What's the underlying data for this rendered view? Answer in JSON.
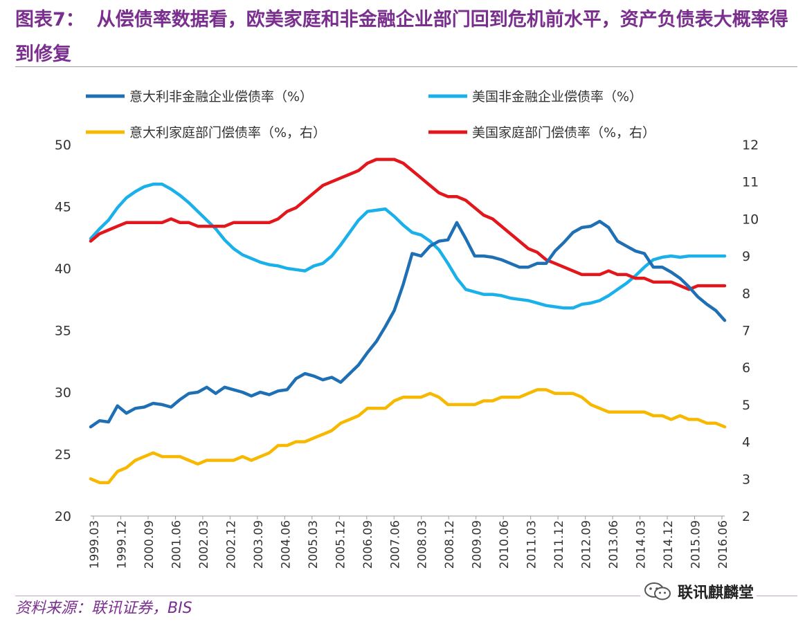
{
  "header": {
    "figure_label": "图表7：",
    "title": "从偿债率数据看，欧美家庭和非金融企业部门回到危机前水平，资产负债表大概率得到修复"
  },
  "footer": {
    "source": "资料来源：联讯证券，BIS",
    "watermark": "联讯麒麟堂",
    "watermark_icon": "wechat-icon"
  },
  "chart_data": {
    "type": "line",
    "y_left": {
      "lim": [
        20,
        50
      ],
      "ticks": [
        "20",
        "25",
        "30",
        "35",
        "40",
        "45",
        "50"
      ]
    },
    "y_right": {
      "lim": [
        2,
        12
      ],
      "ticks": [
        "2",
        "3",
        "4",
        "5",
        "6",
        "7",
        "8",
        "9",
        "10",
        "11",
        "12"
      ]
    },
    "x_start": "1999.03",
    "x_end": "2016.12",
    "x_tick_labels": [
      "1999.03",
      "1999.12",
      "2000.09",
      "2001.06",
      "2002.03",
      "2002.12",
      "2003.09",
      "2004.06",
      "2005.03",
      "2005.12",
      "2006.09",
      "2007.06",
      "2008.03",
      "2008.12",
      "2009.09",
      "2010.06",
      "2011.03",
      "2011.12",
      "2012.09",
      "2013.06",
      "2014.03",
      "2014.12",
      "2015.09",
      "2016.06"
    ],
    "grid": false,
    "legend_position": "top",
    "series": [
      {
        "name": "意大利非金融企业偿债率（%）",
        "axis": "left",
        "color": "#1f6fb5",
        "values": [
          27.2,
          27.7,
          27.6,
          28.9,
          28.3,
          28.7,
          28.8,
          29.1,
          29.0,
          28.8,
          29.4,
          29.9,
          30.0,
          30.4,
          29.9,
          30.4,
          30.2,
          30.0,
          29.7,
          30.0,
          29.8,
          30.1,
          30.2,
          31.1,
          31.5,
          31.3,
          31.0,
          31.2,
          30.8,
          31.5,
          32.2,
          33.2,
          34.1,
          35.3,
          36.6,
          38.7,
          41.2,
          41.0,
          41.8,
          42.2,
          42.3,
          43.7,
          42.4,
          41.0,
          41.0,
          40.9,
          40.7,
          40.4,
          40.1,
          40.1,
          40.4,
          40.4,
          41.4,
          42.1,
          42.9,
          43.3,
          43.4,
          43.8,
          43.3,
          42.2,
          41.8,
          41.4,
          41.2,
          40.1,
          40.1,
          39.7,
          39.2,
          38.5,
          37.7,
          37.1,
          36.6,
          35.8
        ]
      },
      {
        "name": "美国非金融企业偿债率（%）",
        "axis": "left",
        "color": "#1ab0ea",
        "values": [
          42.4,
          43.2,
          43.9,
          44.9,
          45.7,
          46.2,
          46.6,
          46.8,
          46.8,
          46.4,
          45.9,
          45.3,
          44.6,
          43.9,
          43.2,
          42.3,
          41.6,
          41.1,
          40.8,
          40.5,
          40.3,
          40.2,
          40.0,
          39.9,
          39.8,
          40.2,
          40.4,
          41.0,
          41.9,
          42.9,
          43.9,
          44.6,
          44.7,
          44.8,
          44.2,
          43.5,
          42.9,
          42.7,
          42.2,
          41.5,
          40.4,
          39.2,
          38.3,
          38.1,
          37.9,
          37.9,
          37.8,
          37.6,
          37.5,
          37.4,
          37.2,
          37.0,
          36.9,
          36.8,
          36.8,
          37.1,
          37.2,
          37.4,
          37.8,
          38.3,
          38.8,
          39.4,
          40.1,
          40.7,
          40.9,
          41.0,
          40.9,
          41.0,
          41.0,
          41.0,
          41.0,
          41.0
        ]
      },
      {
        "name": "意大利家庭部门偿债率（%，右）",
        "axis": "right",
        "color": "#f7b800",
        "values": [
          3.0,
          2.9,
          2.9,
          3.2,
          3.3,
          3.5,
          3.6,
          3.7,
          3.6,
          3.6,
          3.6,
          3.5,
          3.4,
          3.5,
          3.5,
          3.5,
          3.5,
          3.6,
          3.5,
          3.6,
          3.7,
          3.9,
          3.9,
          4.0,
          4.0,
          4.1,
          4.2,
          4.3,
          4.5,
          4.6,
          4.7,
          4.9,
          4.9,
          4.9,
          5.1,
          5.2,
          5.2,
          5.2,
          5.3,
          5.2,
          5.0,
          5.0,
          5.0,
          5.0,
          5.1,
          5.1,
          5.2,
          5.2,
          5.2,
          5.3,
          5.4,
          5.4,
          5.3,
          5.3,
          5.3,
          5.2,
          5.0,
          4.9,
          4.8,
          4.8,
          4.8,
          4.8,
          4.8,
          4.7,
          4.7,
          4.6,
          4.7,
          4.6,
          4.6,
          4.5,
          4.5,
          4.4
        ]
      },
      {
        "name": "美国家庭部门偿债率（%，右）",
        "axis": "right",
        "color": "#e3161b",
        "values": [
          9.4,
          9.6,
          9.7,
          9.8,
          9.9,
          9.9,
          9.9,
          9.9,
          9.9,
          10.0,
          9.9,
          9.9,
          9.8,
          9.8,
          9.8,
          9.8,
          9.9,
          9.9,
          9.9,
          9.9,
          9.9,
          10.0,
          10.2,
          10.3,
          10.5,
          10.7,
          10.9,
          11.0,
          11.1,
          11.2,
          11.3,
          11.5,
          11.6,
          11.6,
          11.6,
          11.5,
          11.3,
          11.1,
          10.9,
          10.7,
          10.6,
          10.6,
          10.5,
          10.3,
          10.1,
          10.0,
          9.8,
          9.6,
          9.4,
          9.2,
          9.1,
          8.9,
          8.8,
          8.7,
          8.6,
          8.5,
          8.5,
          8.5,
          8.6,
          8.5,
          8.5,
          8.4,
          8.4,
          8.3,
          8.3,
          8.3,
          8.2,
          8.1,
          8.2,
          8.2,
          8.2,
          8.2
        ]
      }
    ]
  }
}
